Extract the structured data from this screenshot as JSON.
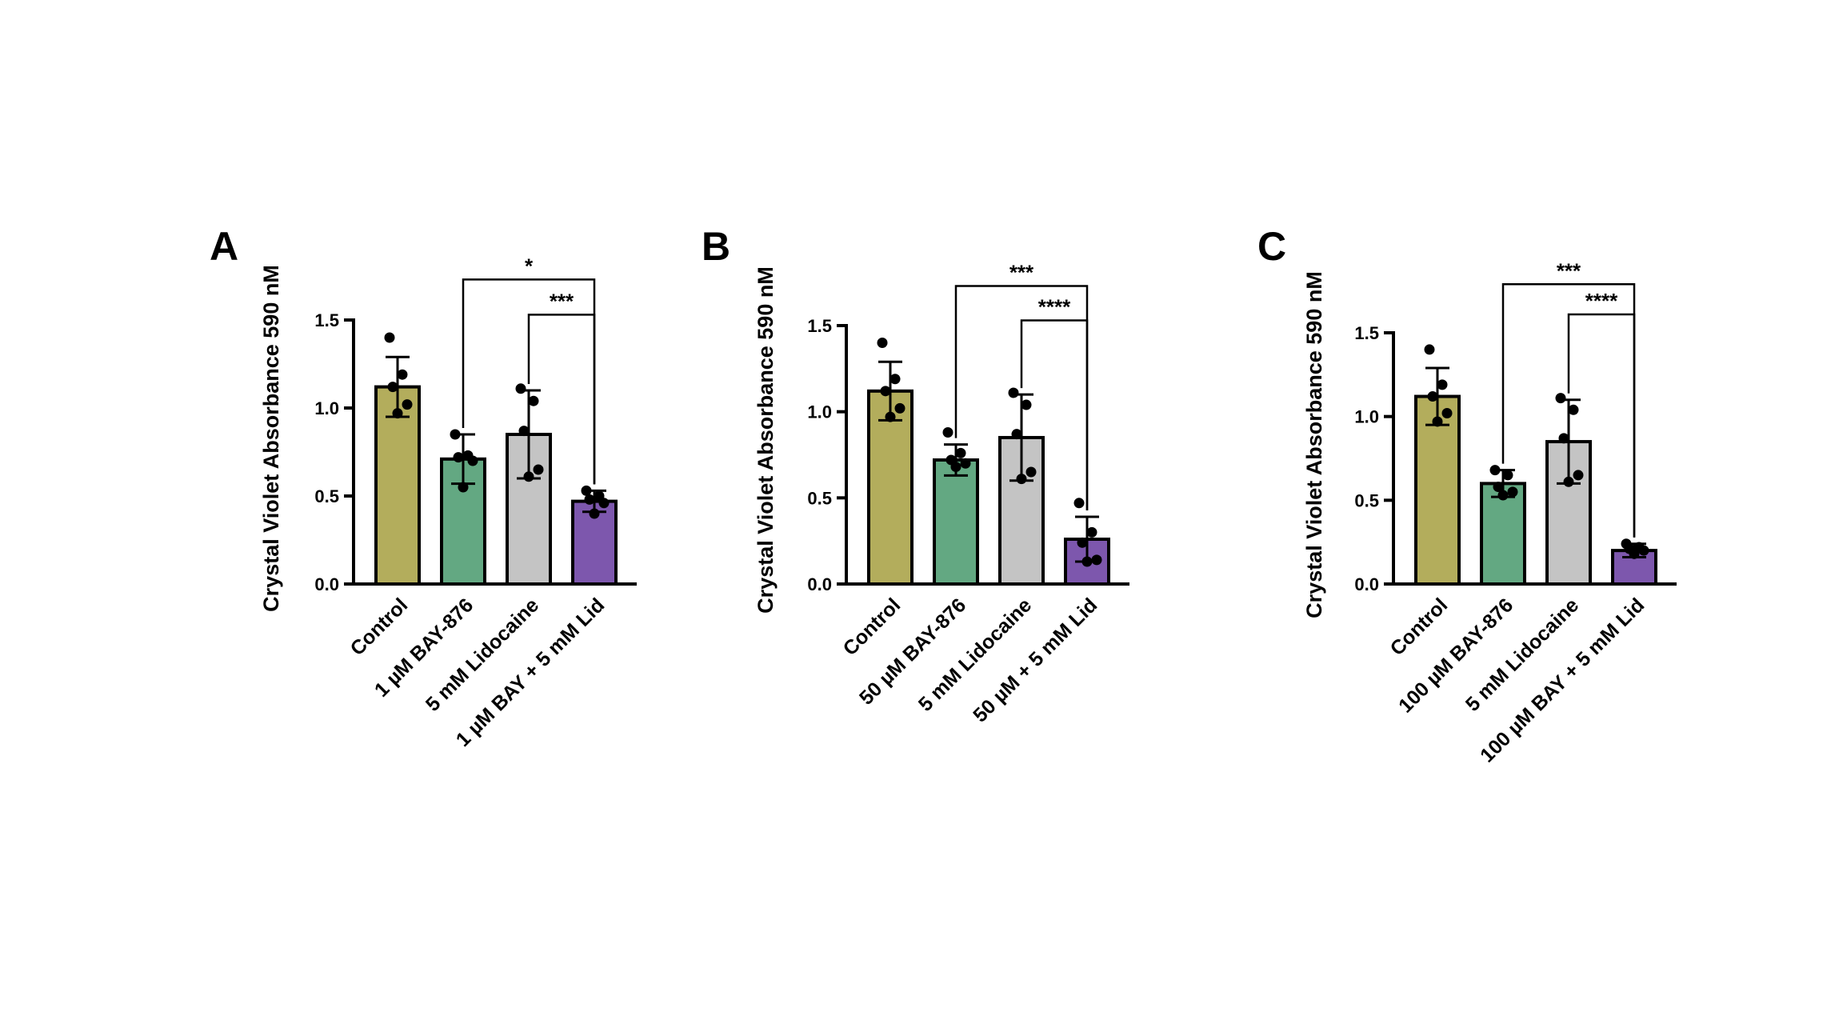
{
  "chart_data": [
    {
      "type": "bar",
      "panel_label": "A",
      "ylabel": "Crystal Violet Absorbance 590 nM",
      "ylim": [
        0,
        1.5
      ],
      "yticks": [
        "0.0",
        "0.5",
        "1.0",
        "1.5"
      ],
      "ytick_values": [
        0,
        0.5,
        1.0,
        1.5
      ],
      "categories": [
        "Control",
        "1 µM BAY-876",
        "5 mM Lidocaine",
        "1 µM BAY + 5 mM Lid"
      ],
      "values": [
        1.12,
        0.71,
        0.85,
        0.47
      ],
      "error": [
        0.17,
        0.14,
        0.25,
        0.06
      ],
      "points": [
        [
          1.4,
          1.19,
          1.12,
          1.02,
          0.97
        ],
        [
          0.85,
          0.73,
          0.72,
          0.7,
          0.55
        ],
        [
          1.11,
          1.04,
          0.87,
          0.65,
          0.61
        ],
        [
          0.53,
          0.5,
          0.48,
          0.46,
          0.4
        ]
      ],
      "colors": [
        "#b3ad5c",
        "#63a882",
        "#c4c4c4",
        "#7d57ad"
      ],
      "significance": [
        {
          "from": 1,
          "to": 3,
          "label": "*",
          "y": 1.73
        },
        {
          "from": 2,
          "to": 3,
          "label": "***",
          "y": 1.53
        }
      ]
    },
    {
      "type": "bar",
      "panel_label": "B",
      "ylabel": "Crystal Violet Absorbance 590 nM",
      "ylim": [
        0,
        1.5
      ],
      "yticks": [
        "0.0",
        "0.5",
        "1.0",
        "1.5"
      ],
      "ytick_values": [
        0,
        0.5,
        1.0,
        1.5
      ],
      "categories": [
        "Control",
        "50 µM BAY-876",
        "5 mM Lidocaine",
        "50 µM  + 5 mM Lid"
      ],
      "values": [
        1.12,
        0.72,
        0.85,
        0.26
      ],
      "error": [
        0.17,
        0.09,
        0.25,
        0.13
      ],
      "points": [
        [
          1.4,
          1.19,
          1.12,
          1.02,
          0.97
        ],
        [
          0.88,
          0.76,
          0.72,
          0.7,
          0.68
        ],
        [
          1.11,
          1.04,
          0.87,
          0.65,
          0.61
        ],
        [
          0.47,
          0.3,
          0.24,
          0.14,
          0.13
        ]
      ],
      "colors": [
        "#b3ad5c",
        "#63a882",
        "#c4c4c4",
        "#7d57ad"
      ],
      "significance": [
        {
          "from": 1,
          "to": 3,
          "label": "***",
          "y": 1.73
        },
        {
          "from": 2,
          "to": 3,
          "label": "****",
          "y": 1.53
        }
      ]
    },
    {
      "type": "bar",
      "panel_label": "C",
      "ylabel": "Crystal Violet Absorbance 590 nM",
      "ylim": [
        0,
        1.5
      ],
      "yticks": [
        "0.0",
        "0.5",
        "1.0",
        "1.5"
      ],
      "ytick_values": [
        0,
        0.5,
        1.0,
        1.5
      ],
      "categories": [
        "Control",
        "100 µM BAY-876",
        "5 mM Lidocaine",
        "100 µM BAY + 5 mM Lid"
      ],
      "values": [
        1.12,
        0.6,
        0.85,
        0.2
      ],
      "error": [
        0.17,
        0.08,
        0.25,
        0.04
      ],
      "points": [
        [
          1.4,
          1.19,
          1.12,
          1.02,
          0.97
        ],
        [
          0.68,
          0.65,
          0.58,
          0.55,
          0.53
        ],
        [
          1.11,
          1.04,
          0.87,
          0.65,
          0.61
        ],
        [
          0.24,
          0.22,
          0.21,
          0.2,
          0.18
        ]
      ],
      "colors": [
        "#b3ad5c",
        "#63a882",
        "#c4c4c4",
        "#7d57ad"
      ],
      "significance": [
        {
          "from": 1,
          "to": 3,
          "label": "***",
          "y": 1.79
        },
        {
          "from": 2,
          "to": 3,
          "label": "****",
          "y": 1.61
        }
      ]
    }
  ]
}
